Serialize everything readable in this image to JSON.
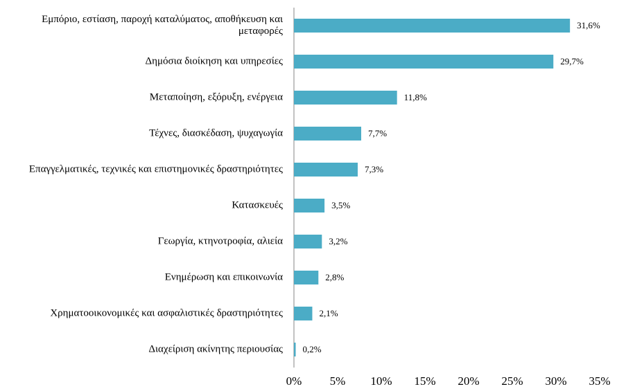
{
  "chart_data": {
    "type": "hbar",
    "categories": [
      "Εμπόριο, εστίαση, παροχή καταλύματος, αποθήκευση και μεταφορές",
      "Δημόσια διοίκηση και υπηρεσίες",
      "Μεταποίηση, εξόρυξη, ενέργεια",
      "Τέχνες, διασκέδαση, ψυχαγωγία",
      "Επαγγελματικές, τεχνικές και επιστημονικές δραστηριότητες",
      "Κατασκευές",
      "Γεωργία, κτηνοτροφία, αλιεία",
      "Ενημέρωση και επικοινωνία",
      "Χρηματοοικονομικές και ασφαλιστικές δραστηριότητες",
      "Διαχείριση ακίνητης περιουσίας"
    ],
    "values": [
      31.6,
      29.7,
      11.8,
      7.7,
      7.3,
      3.5,
      3.2,
      2.8,
      2.1,
      0.2
    ],
    "value_labels": [
      "31,6%",
      "29,7%",
      "11,8%",
      "7,7%",
      "7,3%",
      "3,5%",
      "3,2%",
      "2,8%",
      "2,1%",
      "0,2%"
    ],
    "color": "#4bacc6",
    "xlim": [
      0,
      35
    ],
    "xticks": [
      {
        "value": 0,
        "label": "0%"
      },
      {
        "value": 5,
        "label": "5%"
      },
      {
        "value": 10,
        "label": "10%"
      },
      {
        "value": 15,
        "label": "15%"
      },
      {
        "value": 20,
        "label": "20%"
      },
      {
        "value": 25,
        "label": "25%"
      },
      {
        "value": 30,
        "label": "30%"
      },
      {
        "value": 35,
        "label": "35%"
      }
    ]
  }
}
